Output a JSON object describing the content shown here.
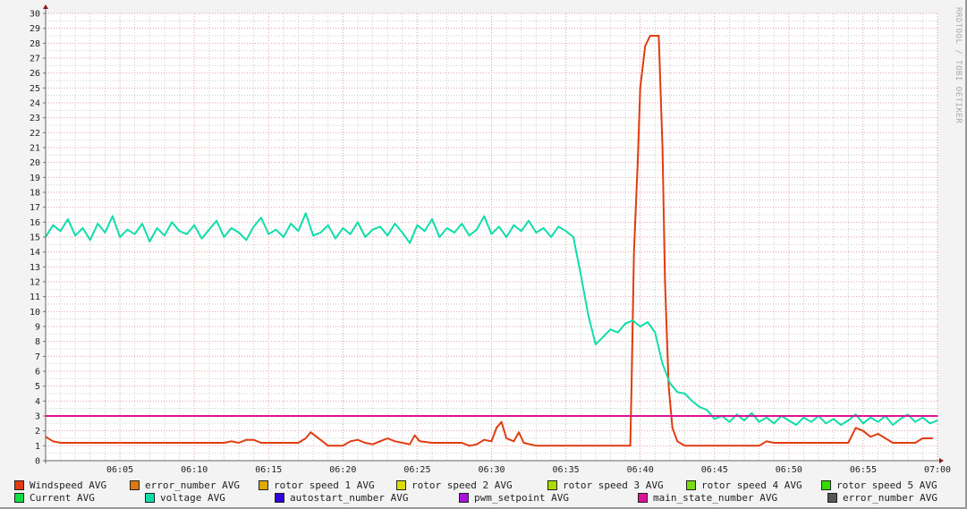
{
  "watermark": "RRDTOOL / TOBI OETIKER",
  "chart_data": {
    "type": "line",
    "title": "",
    "xlabel": "",
    "ylabel": "",
    "xlim": [
      "06:00",
      "07:00"
    ],
    "ylim": [
      0,
      30
    ],
    "y_ticks": [
      0,
      1,
      2,
      3,
      4,
      5,
      6,
      7,
      8,
      9,
      10,
      11,
      12,
      13,
      14,
      15,
      16,
      17,
      18,
      19,
      20,
      21,
      22,
      23,
      24,
      25,
      26,
      27,
      28,
      29,
      30
    ],
    "x_ticks": [
      "06:05",
      "06:10",
      "06:15",
      "06:20",
      "06:25",
      "06:30",
      "06:35",
      "06:40",
      "06:45",
      "06:50",
      "06:55",
      "07:00"
    ],
    "grid": true,
    "legend_placement": "bottom",
    "legend": [
      {
        "label": "Windspeed AVG",
        "color": "#e03c10"
      },
      {
        "label": "error_number AVG",
        "color": "#dd7711"
      },
      {
        "label": "rotor speed 1 AVG",
        "color": "#ddaa00"
      },
      {
        "label": "rotor speed 2 AVG",
        "color": "#dddd00"
      },
      {
        "label": "rotor speed 3 AVG",
        "color": "#aadd00"
      },
      {
        "label": "rotor speed 4 AVG",
        "color": "#77dd11"
      },
      {
        "label": "rotor speed 5 AVG",
        "color": "#33dd00"
      },
      {
        "label": "Current AVG",
        "color": "#11dd44"
      },
      {
        "label": "voltage AVG",
        "color": "#11ddaa"
      },
      {
        "label": "autostart_number AVG",
        "color": "#3300dd"
      },
      {
        "label": "pwm_setpoint AVG",
        "color": "#aa11dd"
      },
      {
        "label": "main_state_number AVG",
        "color": "#dd1199"
      },
      {
        "label": "error_number AVG",
        "color": "#555555"
      }
    ],
    "series": [
      {
        "name": "Windspeed AVG",
        "color": "#e03c10",
        "points": [
          [
            "06:00:00",
            1.6
          ],
          [
            "06:00:30",
            1.3
          ],
          [
            "06:01:00",
            1.2
          ],
          [
            "06:12:00",
            1.2
          ],
          [
            "06:12:30",
            1.3
          ],
          [
            "06:13:00",
            1.2
          ],
          [
            "06:13:30",
            1.4
          ],
          [
            "06:14:00",
            1.4
          ],
          [
            "06:14:30",
            1.2
          ],
          [
            "06:17:00",
            1.2
          ],
          [
            "06:17:30",
            1.5
          ],
          [
            "06:17:50",
            1.9
          ],
          [
            "06:18:30",
            1.4
          ],
          [
            "06:19:00",
            1.0
          ],
          [
            "06:20:00",
            1.0
          ],
          [
            "06:20:30",
            1.3
          ],
          [
            "06:21:00",
            1.4
          ],
          [
            "06:21:30",
            1.2
          ],
          [
            "06:22:00",
            1.1
          ],
          [
            "06:22:30",
            1.3
          ],
          [
            "06:23:00",
            1.5
          ],
          [
            "06:23:30",
            1.3
          ],
          [
            "06:24:00",
            1.2
          ],
          [
            "06:24:30",
            1.1
          ],
          [
            "06:24:50",
            1.7
          ],
          [
            "06:25:10",
            1.3
          ],
          [
            "06:26:00",
            1.2
          ],
          [
            "06:28:00",
            1.2
          ],
          [
            "06:28:30",
            1.0
          ],
          [
            "06:29:00",
            1.1
          ],
          [
            "06:29:30",
            1.4
          ],
          [
            "06:30:00",
            1.3
          ],
          [
            "06:30:20",
            2.2
          ],
          [
            "06:30:40",
            2.6
          ],
          [
            "06:31:00",
            1.5
          ],
          [
            "06:31:30",
            1.3
          ],
          [
            "06:31:50",
            1.9
          ],
          [
            "06:32:10",
            1.2
          ],
          [
            "06:33:00",
            1.0
          ],
          [
            "06:39:20",
            1.0
          ],
          [
            "06:39:25",
            5.0
          ],
          [
            "06:39:35",
            14.0
          ],
          [
            "06:39:50",
            20.0
          ],
          [
            "06:40:00",
            25.0
          ],
          [
            "06:40:20",
            27.8
          ],
          [
            "06:40:40",
            28.5
          ],
          [
            "06:41:15",
            28.5
          ],
          [
            "06:41:30",
            21.0
          ],
          [
            "06:41:40",
            12.0
          ],
          [
            "06:41:55",
            5.0
          ],
          [
            "06:42:10",
            2.2
          ],
          [
            "06:42:30",
            1.3
          ],
          [
            "06:43:00",
            1.0
          ],
          [
            "06:48:00",
            1.0
          ],
          [
            "06:48:30",
            1.3
          ],
          [
            "06:49:00",
            1.2
          ],
          [
            "06:54:00",
            1.2
          ],
          [
            "06:54:30",
            2.2
          ],
          [
            "06:55:00",
            2.0
          ],
          [
            "06:55:30",
            1.6
          ],
          [
            "06:56:00",
            1.8
          ],
          [
            "06:56:30",
            1.5
          ],
          [
            "06:57:00",
            1.2
          ],
          [
            "06:58:30",
            1.2
          ],
          [
            "06:59:00",
            1.5
          ],
          [
            "06:59:40",
            1.5
          ]
        ]
      },
      {
        "name": "voltage AVG",
        "color": "#11ddaa",
        "points": [
          [
            "06:00:00",
            15.0
          ],
          [
            "06:00:30",
            15.8
          ],
          [
            "06:01:00",
            15.4
          ],
          [
            "06:01:30",
            16.2
          ],
          [
            "06:02:00",
            15.1
          ],
          [
            "06:02:30",
            15.6
          ],
          [
            "06:03:00",
            14.8
          ],
          [
            "06:03:30",
            15.9
          ],
          [
            "06:04:00",
            15.3
          ],
          [
            "06:04:30",
            16.4
          ],
          [
            "06:05:00",
            15.0
          ],
          [
            "06:05:30",
            15.5
          ],
          [
            "06:06:00",
            15.2
          ],
          [
            "06:06:30",
            15.9
          ],
          [
            "06:07:00",
            14.7
          ],
          [
            "06:07:30",
            15.6
          ],
          [
            "06:08:00",
            15.1
          ],
          [
            "06:08:30",
            16.0
          ],
          [
            "06:09:00",
            15.4
          ],
          [
            "06:09:30",
            15.2
          ],
          [
            "06:10:00",
            15.8
          ],
          [
            "06:10:30",
            14.9
          ],
          [
            "06:11:00",
            15.5
          ],
          [
            "06:11:30",
            16.1
          ],
          [
            "06:12:00",
            15.0
          ],
          [
            "06:12:30",
            15.6
          ],
          [
            "06:13:00",
            15.3
          ],
          [
            "06:13:30",
            14.8
          ],
          [
            "06:14:00",
            15.7
          ],
          [
            "06:14:30",
            16.3
          ],
          [
            "06:15:00",
            15.2
          ],
          [
            "06:15:30",
            15.5
          ],
          [
            "06:16:00",
            15.0
          ],
          [
            "06:16:30",
            15.9
          ],
          [
            "06:17:00",
            15.4
          ],
          [
            "06:17:30",
            16.6
          ],
          [
            "06:18:00",
            15.1
          ],
          [
            "06:18:30",
            15.3
          ],
          [
            "06:19:00",
            15.8
          ],
          [
            "06:19:30",
            14.9
          ],
          [
            "06:20:00",
            15.6
          ],
          [
            "06:20:30",
            15.2
          ],
          [
            "06:21:00",
            16.0
          ],
          [
            "06:21:30",
            15.0
          ],
          [
            "06:22:00",
            15.5
          ],
          [
            "06:22:30",
            15.7
          ],
          [
            "06:23:00",
            15.1
          ],
          [
            "06:23:30",
            15.9
          ],
          [
            "06:24:00",
            15.3
          ],
          [
            "06:24:30",
            14.6
          ],
          [
            "06:25:00",
            15.8
          ],
          [
            "06:25:30",
            15.4
          ],
          [
            "06:26:00",
            16.2
          ],
          [
            "06:26:30",
            15.0
          ],
          [
            "06:27:00",
            15.6
          ],
          [
            "06:27:30",
            15.3
          ],
          [
            "06:28:00",
            15.9
          ],
          [
            "06:28:30",
            15.1
          ],
          [
            "06:29:00",
            15.5
          ],
          [
            "06:29:30",
            16.4
          ],
          [
            "06:30:00",
            15.2
          ],
          [
            "06:30:30",
            15.7
          ],
          [
            "06:31:00",
            15.0
          ],
          [
            "06:31:30",
            15.8
          ],
          [
            "06:32:00",
            15.4
          ],
          [
            "06:32:30",
            16.1
          ],
          [
            "06:33:00",
            15.3
          ],
          [
            "06:33:30",
            15.6
          ],
          [
            "06:34:00",
            15.0
          ],
          [
            "06:34:30",
            15.7
          ],
          [
            "06:35:00",
            15.4
          ],
          [
            "06:35:30",
            15.0
          ],
          [
            "06:36:00",
            12.5
          ],
          [
            "06:36:30",
            9.8
          ],
          [
            "06:37:00",
            7.8
          ],
          [
            "06:37:30",
            8.3
          ],
          [
            "06:38:00",
            8.8
          ],
          [
            "06:38:30",
            8.6
          ],
          [
            "06:39:00",
            9.2
          ],
          [
            "06:39:30",
            9.4
          ],
          [
            "06:40:00",
            9.0
          ],
          [
            "06:40:30",
            9.3
          ],
          [
            "06:41:00",
            8.6
          ],
          [
            "06:41:30",
            6.5
          ],
          [
            "06:42:00",
            5.2
          ],
          [
            "06:42:30",
            4.6
          ],
          [
            "06:43:00",
            4.5
          ],
          [
            "06:43:30",
            4.0
          ],
          [
            "06:44:00",
            3.6
          ],
          [
            "06:44:30",
            3.4
          ],
          [
            "06:45:00",
            2.8
          ],
          [
            "06:45:30",
            3.0
          ],
          [
            "06:46:00",
            2.6
          ],
          [
            "06:46:30",
            3.1
          ],
          [
            "06:47:00",
            2.7
          ],
          [
            "06:47:30",
            3.2
          ],
          [
            "06:48:00",
            2.6
          ],
          [
            "06:48:30",
            2.9
          ],
          [
            "06:49:00",
            2.5
          ],
          [
            "06:49:30",
            3.0
          ],
          [
            "06:50:00",
            2.7
          ],
          [
            "06:50:30",
            2.4
          ],
          [
            "06:51:00",
            2.9
          ],
          [
            "06:51:30",
            2.6
          ],
          [
            "06:52:00",
            3.0
          ],
          [
            "06:52:30",
            2.5
          ],
          [
            "06:53:00",
            2.8
          ],
          [
            "06:53:30",
            2.4
          ],
          [
            "06:54:00",
            2.7
          ],
          [
            "06:54:30",
            3.1
          ],
          [
            "06:55:00",
            2.5
          ],
          [
            "06:55:30",
            2.9
          ],
          [
            "06:56:00",
            2.6
          ],
          [
            "06:56:30",
            3.0
          ],
          [
            "06:57:00",
            2.4
          ],
          [
            "06:57:30",
            2.8
          ],
          [
            "06:58:00",
            3.1
          ],
          [
            "06:58:30",
            2.6
          ],
          [
            "06:59:00",
            2.9
          ],
          [
            "06:59:30",
            2.5
          ],
          [
            "07:00:00",
            2.7
          ]
        ]
      },
      {
        "name": "main_state_number AVG",
        "color": "#dd1199",
        "points": [
          [
            "06:00:00",
            3
          ],
          [
            "07:00:00",
            3
          ]
        ]
      }
    ]
  }
}
